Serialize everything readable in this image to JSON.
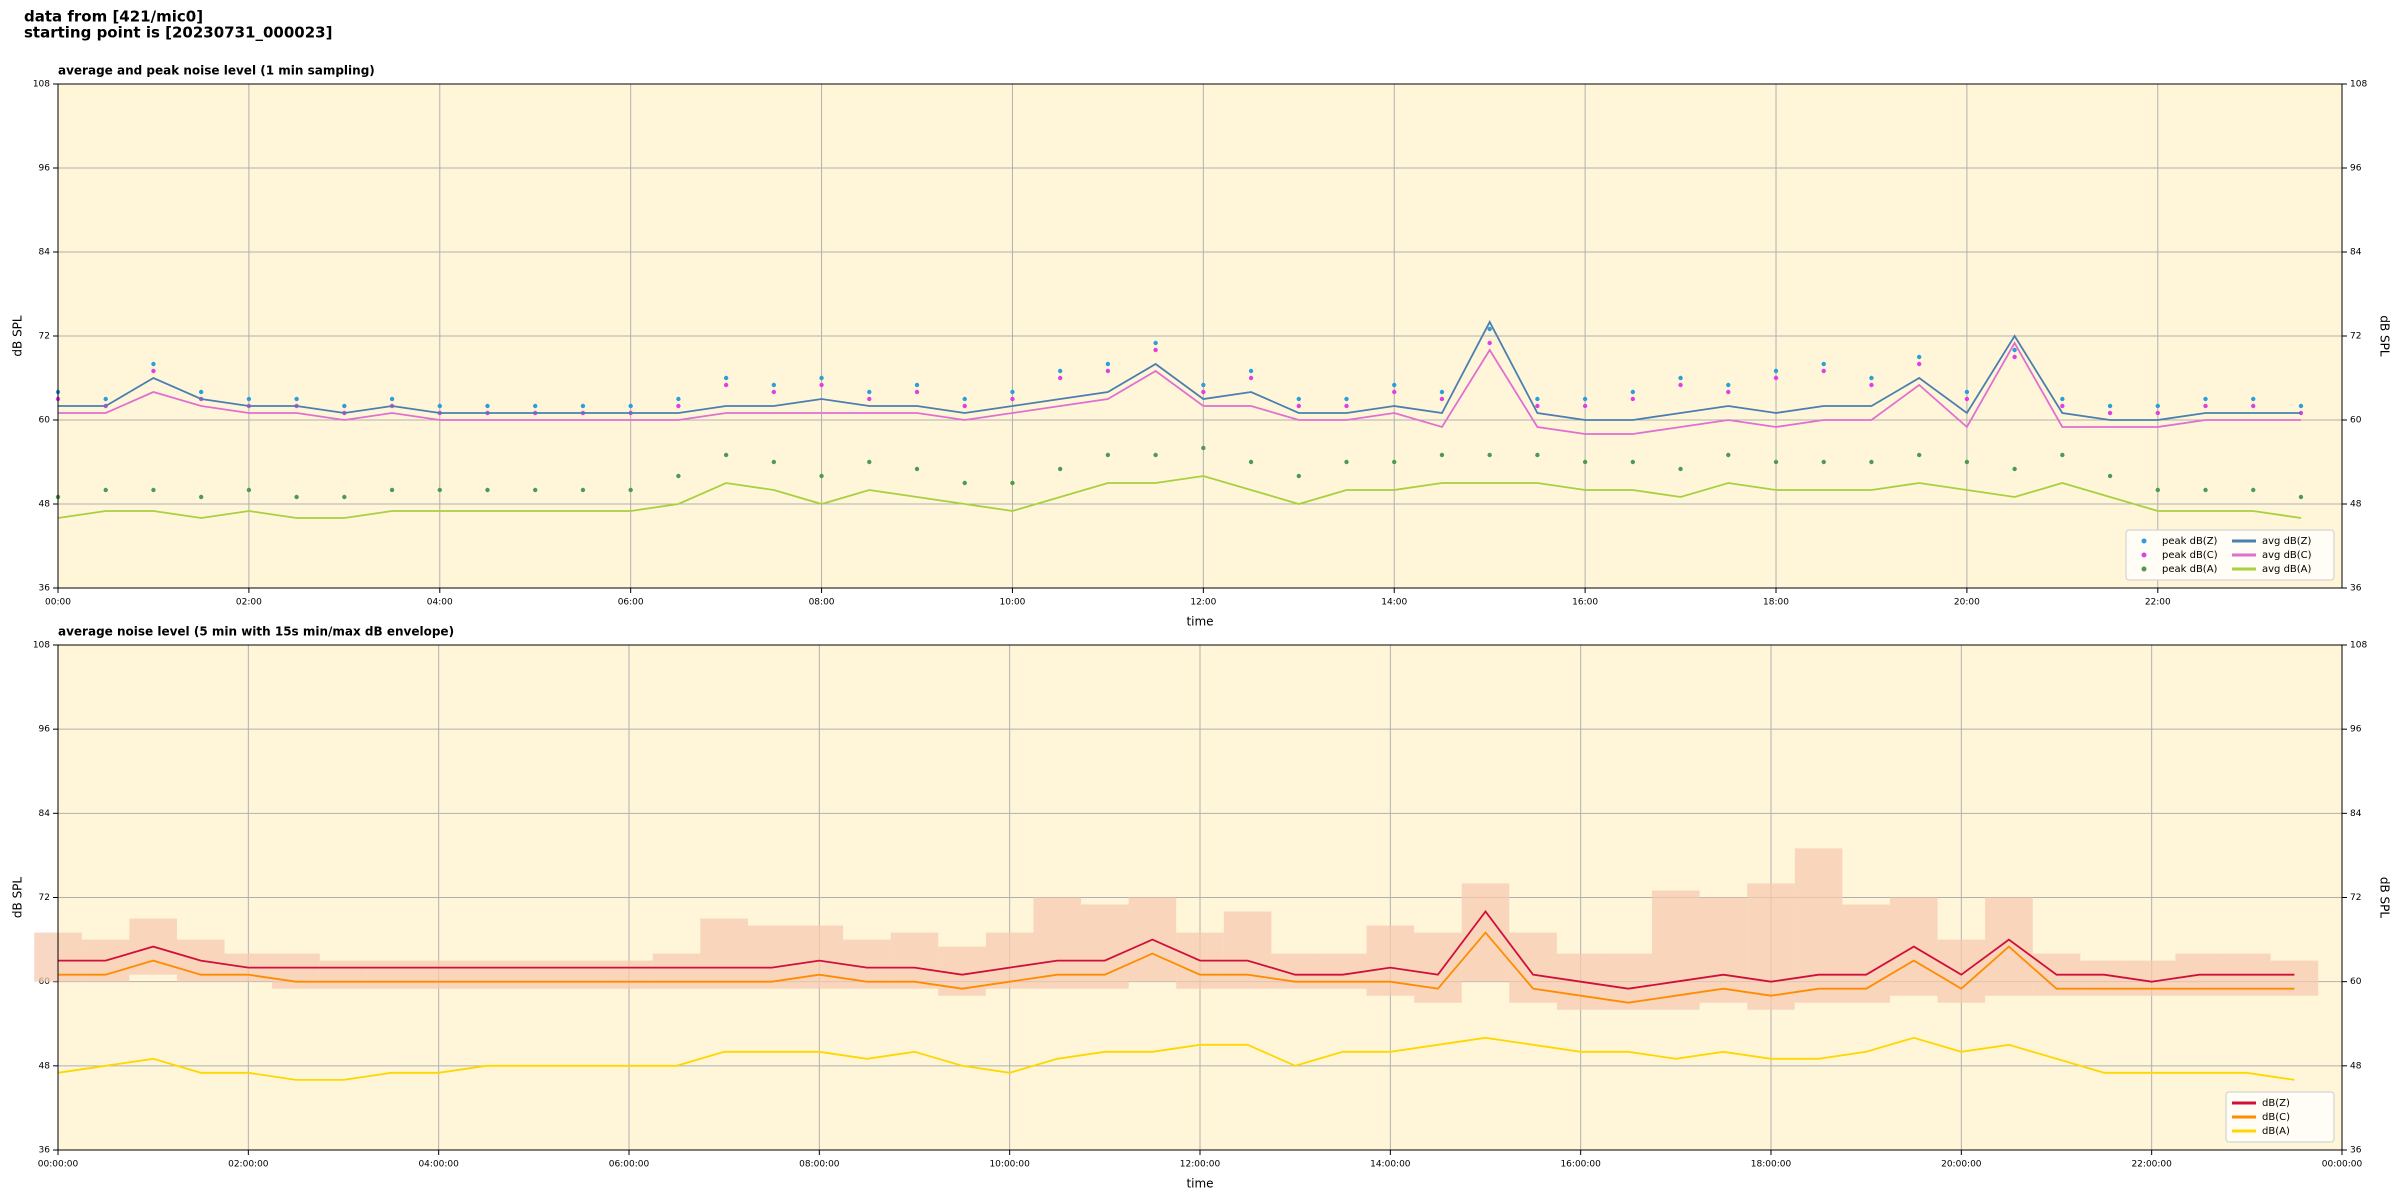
{
  "header": {
    "line1": "data from [421/mic0]",
    "line2": "starting point is [20230731_000023]"
  },
  "chart_data": [
    {
      "type": "line",
      "title": "average and peak noise level (1 min sampling)",
      "x_label": "time",
      "y_label": "dB SPL",
      "background": "#fff6da",
      "grid": true,
      "legend": "lower right",
      "legend_columns": 2,
      "xlim": [
        0,
        23.93
      ],
      "ylim": [
        36,
        108
      ],
      "xticks": [
        {
          "value": 0,
          "label": "00:00"
        },
        {
          "value": 2,
          "label": "02:00"
        },
        {
          "value": 4,
          "label": "04:00"
        },
        {
          "value": 6,
          "label": "06:00"
        },
        {
          "value": 8,
          "label": "08:00"
        },
        {
          "value": 10,
          "label": "10:00"
        },
        {
          "value": 12,
          "label": "12:00"
        },
        {
          "value": 14,
          "label": "14:00"
        },
        {
          "value": 16,
          "label": "16:00"
        },
        {
          "value": 18,
          "label": "18:00"
        },
        {
          "value": 20,
          "label": "20:00"
        },
        {
          "value": 22,
          "label": "22:00"
        }
      ],
      "yticks": [
        36,
        48,
        60,
        72,
        84,
        96,
        108
      ],
      "x": [
        0,
        0.5,
        1,
        1.5,
        2,
        2.5,
        3,
        3.5,
        4,
        4.5,
        5,
        5.5,
        6,
        6.5,
        7,
        7.5,
        8,
        8.5,
        9,
        9.5,
        10,
        10.5,
        11,
        11.5,
        12,
        12.5,
        13,
        13.5,
        14,
        14.5,
        15,
        15.5,
        16,
        16.5,
        17,
        17.5,
        18,
        18.5,
        19,
        19.5,
        20,
        20.5,
        21,
        21.5,
        22,
        22.5,
        23,
        23.5
      ],
      "series": [
        {
          "name": "peak dB(Z)",
          "type": "scatter",
          "color": "#2a9fd8",
          "values": [
            64,
            63,
            68,
            64,
            63,
            63,
            62,
            63,
            62,
            62,
            62,
            62,
            62,
            63,
            66,
            65,
            66,
            64,
            65,
            63,
            64,
            67,
            68,
            71,
            65,
            67,
            63,
            63,
            65,
            64,
            73,
            63,
            63,
            64,
            66,
            65,
            67,
            68,
            66,
            69,
            64,
            70,
            63,
            62,
            62,
            63,
            63,
            62
          ]
        },
        {
          "name": "peak dB(C)",
          "type": "scatter",
          "color": "#e040e0",
          "values": [
            63,
            62,
            67,
            63,
            62,
            62,
            61,
            62,
            61,
            61,
            61,
            61,
            61,
            62,
            65,
            64,
            65,
            63,
            64,
            62,
            63,
            66,
            67,
            70,
            64,
            66,
            62,
            62,
            64,
            63,
            71,
            62,
            62,
            63,
            65,
            64,
            66,
            67,
            65,
            68,
            63,
            69,
            62,
            61,
            61,
            62,
            62,
            61
          ]
        },
        {
          "name": "peak dB(A)",
          "type": "scatter",
          "color": "#4e9a52",
          "values": [
            49,
            50,
            50,
            49,
            50,
            49,
            49,
            50,
            50,
            50,
            50,
            50,
            50,
            52,
            55,
            54,
            52,
            54,
            53,
            51,
            51,
            53,
            55,
            55,
            56,
            54,
            52,
            54,
            54,
            55,
            55,
            55,
            54,
            54,
            53,
            55,
            54,
            54,
            54,
            55,
            54,
            53,
            55,
            52,
            50,
            50,
            50,
            49
          ]
        },
        {
          "name": "avg dB(Z)",
          "type": "line",
          "color": "#4a7fb0",
          "values": [
            62,
            62,
            66,
            63,
            62,
            62,
            61,
            62,
            61,
            61,
            61,
            61,
            61,
            61,
            62,
            62,
            63,
            62,
            62,
            61,
            62,
            63,
            64,
            68,
            63,
            64,
            61,
            61,
            62,
            61,
            74,
            61,
            60,
            60,
            61,
            62,
            61,
            62,
            62,
            66,
            61,
            72,
            61,
            60,
            60,
            61,
            61,
            61
          ]
        },
        {
          "name": "avg dB(C)",
          "type": "line",
          "color": "#e070d0",
          "values": [
            61,
            61,
            64,
            62,
            61,
            61,
            60,
            61,
            60,
            60,
            60,
            60,
            60,
            60,
            61,
            61,
            61,
            61,
            61,
            60,
            61,
            62,
            63,
            67,
            62,
            62,
            60,
            60,
            61,
            59,
            70,
            59,
            58,
            58,
            59,
            60,
            59,
            60,
            60,
            65,
            59,
            71,
            59,
            59,
            59,
            60,
            60,
            60
          ]
        },
        {
          "name": "avg dB(A)",
          "type": "line",
          "color": "#a8d040",
          "values": [
            46,
            47,
            47,
            46,
            47,
            46,
            46,
            47,
            47,
            47,
            47,
            47,
            47,
            48,
            51,
            50,
            48,
            50,
            49,
            48,
            47,
            49,
            51,
            51,
            52,
            50,
            48,
            50,
            50,
            51,
            51,
            51,
            50,
            50,
            49,
            51,
            50,
            50,
            50,
            51,
            50,
            49,
            51,
            49,
            47,
            47,
            47,
            46
          ]
        }
      ]
    },
    {
      "type": "line",
      "title": "average noise level (5 min with 15s min/max dB envelope)",
      "x_label": "time",
      "y_label": "dB SPL",
      "background": "#fff6da",
      "grid": true,
      "legend": "lower right",
      "legend_columns": 1,
      "xlim": [
        0,
        24
      ],
      "ylim": [
        36,
        108
      ],
      "xticks": [
        {
          "value": 0,
          "label": "00:00:00"
        },
        {
          "value": 2,
          "label": "02:00:00"
        },
        {
          "value": 4,
          "label": "04:00:00"
        },
        {
          "value": 6,
          "label": "06:00:00"
        },
        {
          "value": 8,
          "label": "08:00:00"
        },
        {
          "value": 10,
          "label": "10:00:00"
        },
        {
          "value": 12,
          "label": "12:00:00"
        },
        {
          "value": 14,
          "label": "14:00:00"
        },
        {
          "value": 16,
          "label": "16:00:00"
        },
        {
          "value": 18,
          "label": "18:00:00"
        },
        {
          "value": 20,
          "label": "20:00:00"
        },
        {
          "value": 22,
          "label": "22:00:00"
        },
        {
          "value": 24,
          "label": "00:00:00"
        }
      ],
      "yticks": [
        36,
        48,
        60,
        72,
        84,
        96,
        108
      ],
      "x": [
        0,
        0.5,
        1,
        1.5,
        2,
        2.5,
        3,
        3.5,
        4,
        4.5,
        5,
        5.5,
        6,
        6.5,
        7,
        7.5,
        8,
        8.5,
        9,
        9.5,
        10,
        10.5,
        11,
        11.5,
        12,
        12.5,
        13,
        13.5,
        14,
        14.5,
        15,
        15.5,
        16,
        16.5,
        17,
        17.5,
        18,
        18.5,
        19,
        19.5,
        20,
        20.5,
        21,
        21.5,
        22,
        22.5,
        23,
        23.5
      ],
      "envelope": {
        "color": "#f6c9b0",
        "low": [
          60,
          60,
          61,
          60,
          60,
          59,
          59,
          59,
          59,
          59,
          59,
          59,
          59,
          59,
          59,
          59,
          59,
          59,
          59,
          58,
          59,
          59,
          59,
          60,
          59,
          59,
          59,
          59,
          58,
          57,
          60,
          57,
          56,
          56,
          56,
          57,
          56,
          57,
          57,
          58,
          57,
          58,
          58,
          58,
          58,
          58,
          58,
          58
        ],
        "high": [
          67,
          66,
          69,
          66,
          64,
          64,
          63,
          63,
          63,
          63,
          63,
          63,
          63,
          64,
          69,
          68,
          68,
          66,
          67,
          65,
          67,
          72,
          71,
          72,
          67,
          70,
          64,
          64,
          68,
          67,
          74,
          67,
          64,
          64,
          73,
          72,
          74,
          79,
          71,
          72,
          66,
          72,
          64,
          63,
          63,
          64,
          64,
          63
        ]
      },
      "series": [
        {
          "name": "dB(Z)",
          "type": "line",
          "color": "#d0103a",
          "values": [
            63,
            63,
            65,
            63,
            62,
            62,
            62,
            62,
            62,
            62,
            62,
            62,
            62,
            62,
            62,
            62,
            63,
            62,
            62,
            61,
            62,
            63,
            63,
            66,
            63,
            63,
            61,
            61,
            62,
            61,
            70,
            61,
            60,
            59,
            60,
            61,
            60,
            61,
            61,
            65,
            61,
            66,
            61,
            61,
            60,
            61,
            61,
            61
          ]
        },
        {
          "name": "dB(C)",
          "type": "line",
          "color": "#ff8c00",
          "values": [
            61,
            61,
            63,
            61,
            61,
            60,
            60,
            60,
            60,
            60,
            60,
            60,
            60,
            60,
            60,
            60,
            61,
            60,
            60,
            59,
            60,
            61,
            61,
            64,
            61,
            61,
            60,
            60,
            60,
            59,
            67,
            59,
            58,
            57,
            58,
            59,
            58,
            59,
            59,
            63,
            59,
            65,
            59,
            59,
            59,
            59,
            59,
            59
          ]
        },
        {
          "name": "dB(A)",
          "type": "line",
          "color": "#ffd700",
          "values": [
            47,
            48,
            49,
            47,
            47,
            46,
            46,
            47,
            47,
            48,
            48,
            48,
            48,
            48,
            50,
            50,
            50,
            49,
            50,
            48,
            47,
            49,
            50,
            50,
            51,
            51,
            48,
            50,
            50,
            51,
            52,
            51,
            50,
            50,
            49,
            50,
            49,
            49,
            50,
            52,
            50,
            51,
            49,
            47,
            47,
            47,
            47,
            46
          ]
        }
      ]
    }
  ]
}
